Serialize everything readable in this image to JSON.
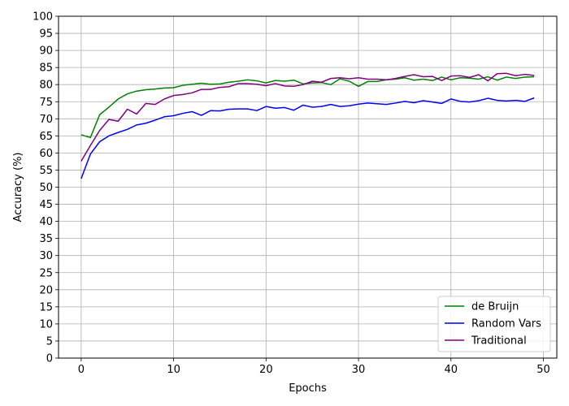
{
  "chart_data": {
    "type": "line",
    "xlabel": "Epochs",
    "ylabel": "Accuracy (%)",
    "xlim": [
      -2.45,
      51.45
    ],
    "ylim": [
      0,
      100
    ],
    "xticks": [
      0,
      10,
      20,
      30,
      40,
      50
    ],
    "yticks": [
      0,
      5,
      10,
      15,
      20,
      25,
      30,
      35,
      40,
      45,
      50,
      55,
      60,
      65,
      70,
      75,
      80,
      85,
      90,
      95,
      100
    ],
    "grid": true,
    "legend_position": "lower-right",
    "x": [
      0,
      1,
      2,
      3,
      4,
      5,
      6,
      7,
      8,
      9,
      10,
      11,
      12,
      13,
      14,
      15,
      16,
      17,
      18,
      19,
      20,
      21,
      22,
      23,
      24,
      25,
      26,
      27,
      28,
      29,
      30,
      31,
      32,
      33,
      34,
      35,
      36,
      37,
      38,
      39,
      40,
      41,
      42,
      43,
      44,
      45,
      46,
      47,
      48,
      49
    ],
    "series": [
      {
        "name": "de Bruijn",
        "color": "#008000",
        "values": [
          65.3,
          64.5,
          71.2,
          73.4,
          75.8,
          77.3,
          78.1,
          78.5,
          78.7,
          79.0,
          79.1,
          79.8,
          80.1,
          80.4,
          80.1,
          80.2,
          80.7,
          81.0,
          81.4,
          81.1,
          80.5,
          81.2,
          81.0,
          81.3,
          80.2,
          80.5,
          80.6,
          80.0,
          81.7,
          81.0,
          79.5,
          80.9,
          80.9,
          81.4,
          81.6,
          82.0,
          81.3,
          81.6,
          81.2,
          82.2,
          81.4,
          82.0,
          81.9,
          81.6,
          82.3,
          81.3,
          82.2,
          81.8,
          82.2,
          82.3
        ]
      },
      {
        "name": "Random Vars",
        "color": "#0000ff",
        "values": [
          52.5,
          59.7,
          63.3,
          65.0,
          66.0,
          66.9,
          68.2,
          68.7,
          69.6,
          70.6,
          70.9,
          71.6,
          72.1,
          71.0,
          72.4,
          72.3,
          72.8,
          72.9,
          72.9,
          72.4,
          73.6,
          73.1,
          73.3,
          72.5,
          74.0,
          73.4,
          73.6,
          74.2,
          73.6,
          73.8,
          74.3,
          74.6,
          74.4,
          74.2,
          74.6,
          75.1,
          74.7,
          75.3,
          74.9,
          74.5,
          75.8,
          75.1,
          74.9,
          75.3,
          76.0,
          75.4,
          75.2,
          75.4,
          75.1,
          76.1
        ]
      },
      {
        "name": "Traditional",
        "color": "#800080",
        "values": [
          57.6,
          62.2,
          66.6,
          69.8,
          69.3,
          72.8,
          71.4,
          74.5,
          74.2,
          75.8,
          76.8,
          77.1,
          77.6,
          78.6,
          78.6,
          79.2,
          79.4,
          80.3,
          80.3,
          80.1,
          79.7,
          80.3,
          79.6,
          79.5,
          80.0,
          81.0,
          80.7,
          81.8,
          82.0,
          81.7,
          82.0,
          81.6,
          81.6,
          81.4,
          81.8,
          82.4,
          82.9,
          82.3,
          82.4,
          81.2,
          82.5,
          82.6,
          82.1,
          82.9,
          81.1,
          83.2,
          83.3,
          82.6,
          83.0,
          82.7
        ]
      }
    ]
  }
}
